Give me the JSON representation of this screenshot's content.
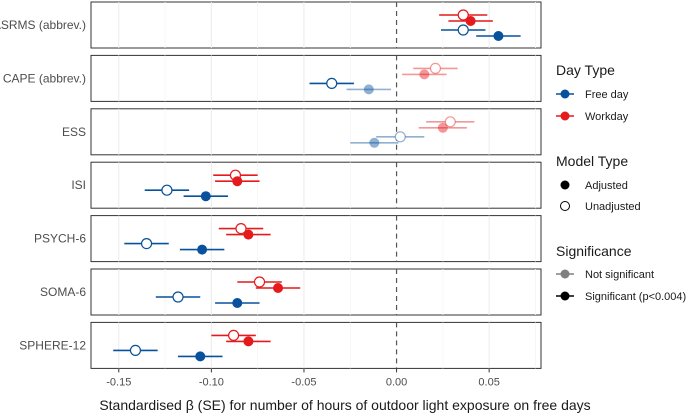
{
  "chart_data": {
    "type": "forest",
    "xlabel": "Standardised β (SE) for number of hours of outdoor light exposure on free days",
    "xlim": [
      -0.165,
      0.078
    ],
    "x_ticks": [
      -0.15,
      -0.1,
      -0.05,
      0.0,
      0.05
    ],
    "x_tick_labels": [
      "-0.15",
      "-0.10",
      "-0.05",
      "0.00",
      "0.05"
    ],
    "reference_line": 0,
    "colors": {
      "free_day": "#08519c",
      "workday": "#e41a1c",
      "grey": "#808080",
      "black": "#000000"
    },
    "legend": {
      "day_type": {
        "title": "Day Type",
        "items": [
          "Free day",
          "Workday"
        ]
      },
      "model_type": {
        "title": "Model Type",
        "items": [
          "Adjusted",
          "Unadjusted"
        ]
      },
      "significance": {
        "title": "Significance",
        "items": [
          "Not significant",
          "Significant (p<0.004)"
        ]
      }
    },
    "outcomes": [
      {
        "label": "ASRMS (abbrev.)",
        "points": [
          {
            "day": "Workday",
            "model": "Unadjusted",
            "estimate": 0.036,
            "lo": 0.023,
            "hi": 0.049,
            "significant": true
          },
          {
            "day": "Workday",
            "model": "Adjusted",
            "estimate": 0.04,
            "lo": 0.028,
            "hi": 0.052,
            "significant": true
          },
          {
            "day": "Free day",
            "model": "Unadjusted",
            "estimate": 0.036,
            "lo": 0.024,
            "hi": 0.048,
            "significant": true
          },
          {
            "day": "Free day",
            "model": "Adjusted",
            "estimate": 0.055,
            "lo": 0.043,
            "hi": 0.067,
            "significant": true
          }
        ]
      },
      {
        "label": "CAPE (abbrev.)",
        "points": [
          {
            "day": "Workday",
            "model": "Unadjusted",
            "estimate": 0.021,
            "lo": 0.009,
            "hi": 0.033,
            "significant": false
          },
          {
            "day": "Workday",
            "model": "Adjusted",
            "estimate": 0.015,
            "lo": 0.003,
            "hi": 0.027,
            "significant": false
          },
          {
            "day": "Free day",
            "model": "Unadjusted",
            "estimate": -0.035,
            "lo": -0.047,
            "hi": -0.023,
            "significant": true
          },
          {
            "day": "Free day",
            "model": "Adjusted",
            "estimate": -0.015,
            "lo": -0.027,
            "hi": -0.003,
            "significant": false
          }
        ]
      },
      {
        "label": "ESS",
        "points": [
          {
            "day": "Workday",
            "model": "Unadjusted",
            "estimate": 0.029,
            "lo": 0.016,
            "hi": 0.042,
            "significant": false
          },
          {
            "day": "Workday",
            "model": "Adjusted",
            "estimate": 0.025,
            "lo": 0.012,
            "hi": 0.038,
            "significant": false
          },
          {
            "day": "Free day",
            "model": "Unadjusted",
            "estimate": 0.002,
            "lo": -0.011,
            "hi": 0.015,
            "significant": false
          },
          {
            "day": "Free day",
            "model": "Adjusted",
            "estimate": -0.012,
            "lo": -0.025,
            "hi": 0.001,
            "significant": false
          }
        ]
      },
      {
        "label": "ISI",
        "points": [
          {
            "day": "Workday",
            "model": "Unadjusted",
            "estimate": -0.087,
            "lo": -0.099,
            "hi": -0.075,
            "significant": true
          },
          {
            "day": "Workday",
            "model": "Adjusted",
            "estimate": -0.086,
            "lo": -0.098,
            "hi": -0.074,
            "significant": true
          },
          {
            "day": "Free day",
            "model": "Unadjusted",
            "estimate": -0.124,
            "lo": -0.136,
            "hi": -0.112,
            "significant": true
          },
          {
            "day": "Free day",
            "model": "Adjusted",
            "estimate": -0.103,
            "lo": -0.115,
            "hi": -0.091,
            "significant": true
          }
        ]
      },
      {
        "label": "PSYCH-6",
        "points": [
          {
            "day": "Workday",
            "model": "Unadjusted",
            "estimate": -0.084,
            "lo": -0.096,
            "hi": -0.072,
            "significant": true
          },
          {
            "day": "Workday",
            "model": "Adjusted",
            "estimate": -0.08,
            "lo": -0.092,
            "hi": -0.068,
            "significant": true
          },
          {
            "day": "Free day",
            "model": "Unadjusted",
            "estimate": -0.135,
            "lo": -0.147,
            "hi": -0.123,
            "significant": true
          },
          {
            "day": "Free day",
            "model": "Adjusted",
            "estimate": -0.105,
            "lo": -0.117,
            "hi": -0.093,
            "significant": true
          }
        ]
      },
      {
        "label": "SOMA-6",
        "points": [
          {
            "day": "Workday",
            "model": "Unadjusted",
            "estimate": -0.074,
            "lo": -0.086,
            "hi": -0.062,
            "significant": true
          },
          {
            "day": "Workday",
            "model": "Adjusted",
            "estimate": -0.064,
            "lo": -0.076,
            "hi": -0.052,
            "significant": true
          },
          {
            "day": "Free day",
            "model": "Unadjusted",
            "estimate": -0.118,
            "lo": -0.13,
            "hi": -0.106,
            "significant": true
          },
          {
            "day": "Free day",
            "model": "Adjusted",
            "estimate": -0.086,
            "lo": -0.098,
            "hi": -0.074,
            "significant": true
          }
        ]
      },
      {
        "label": "SPHERE-12",
        "points": [
          {
            "day": "Workday",
            "model": "Unadjusted",
            "estimate": -0.088,
            "lo": -0.1,
            "hi": -0.076,
            "significant": true
          },
          {
            "day": "Workday",
            "model": "Adjusted",
            "estimate": -0.08,
            "lo": -0.092,
            "hi": -0.068,
            "significant": true
          },
          {
            "day": "Free day",
            "model": "Unadjusted",
            "estimate": -0.141,
            "lo": -0.153,
            "hi": -0.129,
            "significant": true
          },
          {
            "day": "Free day",
            "model": "Adjusted",
            "estimate": -0.106,
            "lo": -0.118,
            "hi": -0.094,
            "significant": true
          }
        ]
      }
    ]
  }
}
